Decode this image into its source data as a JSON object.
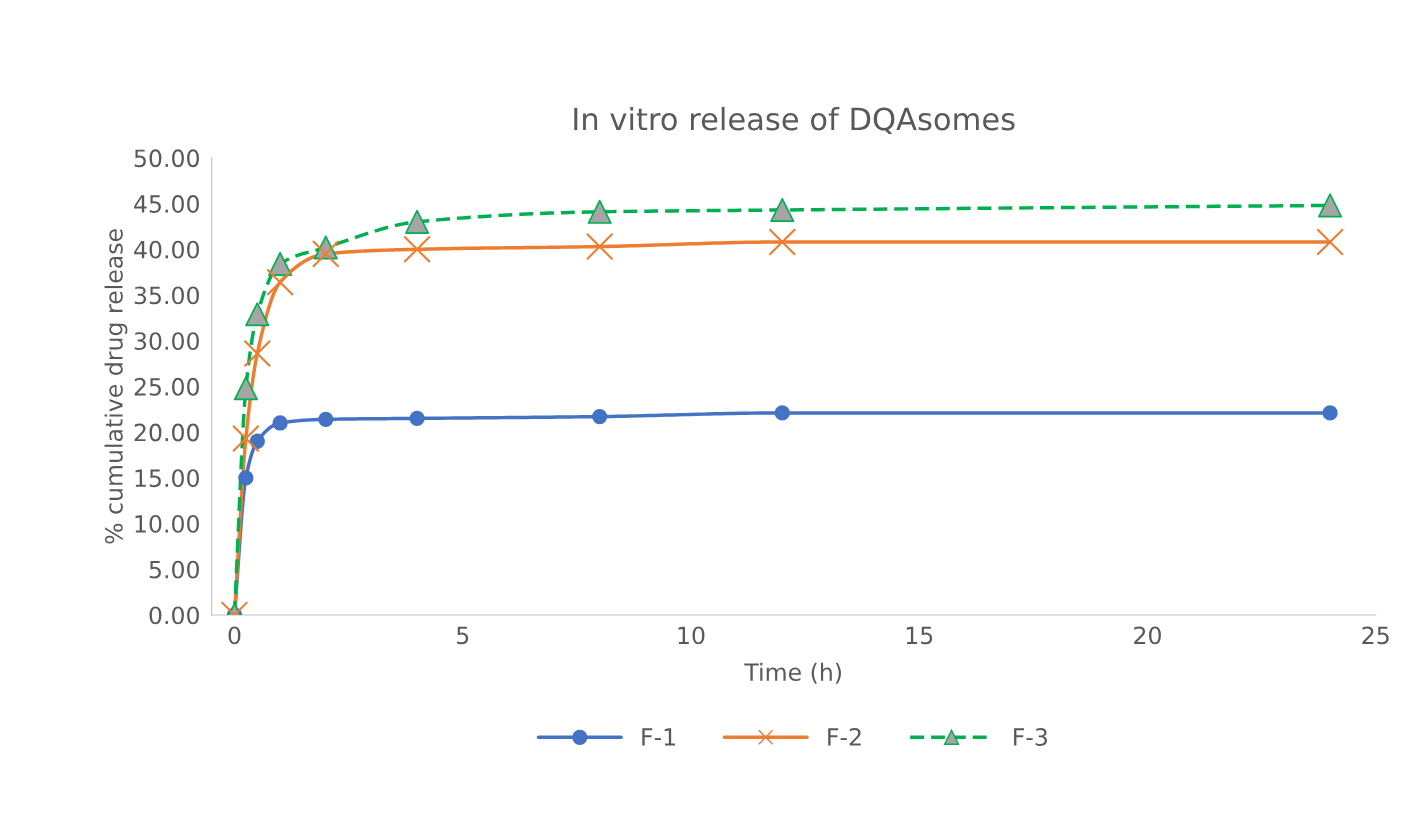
{
  "chart_data": {
    "type": "line",
    "title": "In vitro release of DQAsomes",
    "xlabel": "Time (h)",
    "ylabel": "% cumulative drug release",
    "x": [
      0,
      0.25,
      0.5,
      1,
      2,
      4,
      8,
      12,
      24
    ],
    "series": [
      {
        "name": "F-1",
        "color": "#4472c4",
        "marker": "circle",
        "line_style": "solid",
        "values": [
          0,
          15.0,
          19.0,
          21.0,
          21.4,
          21.5,
          21.7,
          22.1,
          22.1
        ]
      },
      {
        "name": "F-2",
        "color": "#ed7d31",
        "marker": "cross",
        "line_style": "solid",
        "values": [
          0,
          19.3,
          28.6,
          36.4,
          39.5,
          40.0,
          40.3,
          40.8,
          40.8
        ]
      },
      {
        "name": "F-3",
        "color": "#00b050",
        "marker": "triangle",
        "line_style": "dashed",
        "values": [
          0,
          24.8,
          32.9,
          38.4,
          40.2,
          43.0,
          44.1,
          44.3,
          44.8
        ]
      }
    ],
    "xlim": [
      -0.5,
      25
    ],
    "xticks": [
      0,
      5,
      10,
      15,
      20,
      25
    ],
    "ylim": [
      0,
      50
    ],
    "yticks": [
      {
        "value": 0,
        "label": "0.00"
      },
      {
        "value": 5,
        "label": "5.00"
      },
      {
        "value": 10,
        "label": "10.00"
      },
      {
        "value": 15,
        "label": "15.00"
      },
      {
        "value": 20,
        "label": "20.00"
      },
      {
        "value": 25,
        "label": "25.00"
      },
      {
        "value": 30,
        "label": "30.00"
      },
      {
        "value": 35,
        "label": "35.00"
      },
      {
        "value": 40,
        "label": "40.00"
      },
      {
        "value": 45,
        "label": "45.00"
      },
      {
        "value": 50,
        "label": "50.00"
      }
    ],
    "grid": false,
    "legend": "bottom"
  }
}
